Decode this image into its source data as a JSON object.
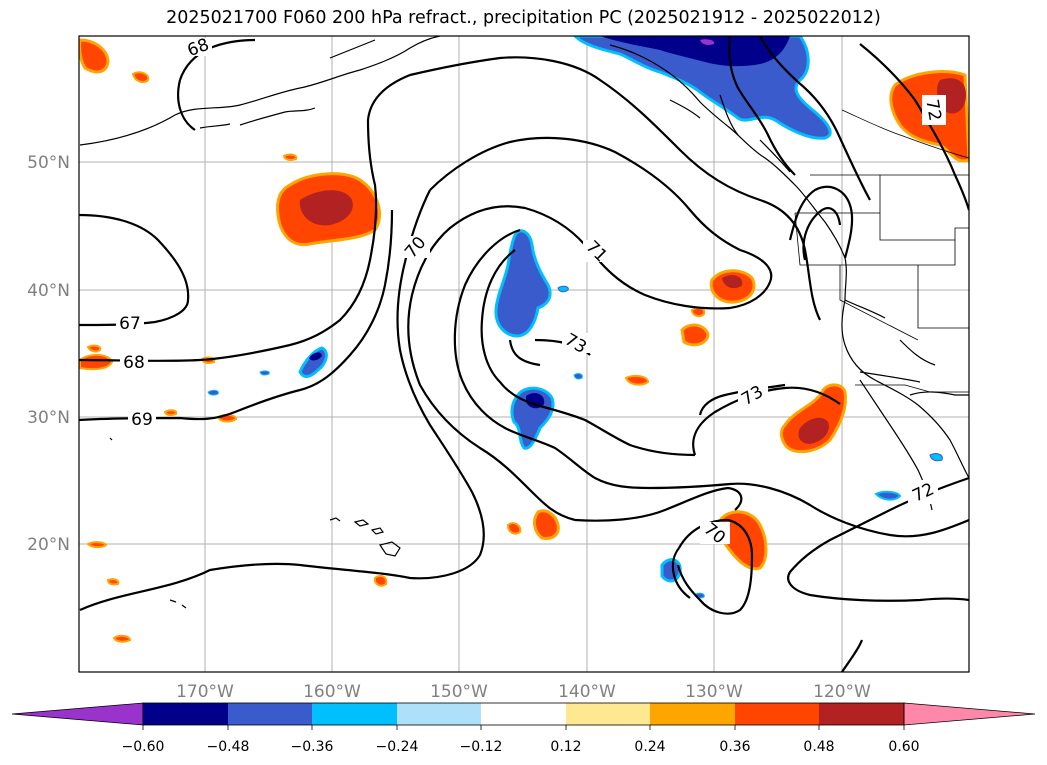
{
  "title": "2025021700 F060 200 hPa refract., precipitation PC (2025021912 - 2025022012)",
  "lat_labels": [
    "50°N",
    "40°N",
    "30°N",
    "20°N"
  ],
  "lon_labels": [
    "170°W",
    "160°W",
    "150°W",
    "140°W",
    "130°W",
    "120°W"
  ],
  "contour_labels": [
    "68",
    "70",
    "71",
    "73",
    "67",
    "68",
    "69",
    "73",
    "70",
    "72",
    "72"
  ],
  "colorbar": {
    "ticks": [
      "−0.60",
      "−0.48",
      "−0.36",
      "−0.24",
      "−0.12",
      "0.12",
      "0.24",
      "0.36",
      "0.48",
      "0.60"
    ],
    "colors": [
      "#9933cc",
      "#00008b",
      "#3a5bcc",
      "#00bfff",
      "#aee0fa",
      "#ffffff",
      "#ffe88f",
      "#ffa500",
      "#ff4500",
      "#b22222",
      "#ff88aa"
    ]
  },
  "colors": {
    "gridline": "#b0b0b0",
    "label_gray": "#808080",
    "contour": "#000000",
    "coastline": "#000000"
  }
}
